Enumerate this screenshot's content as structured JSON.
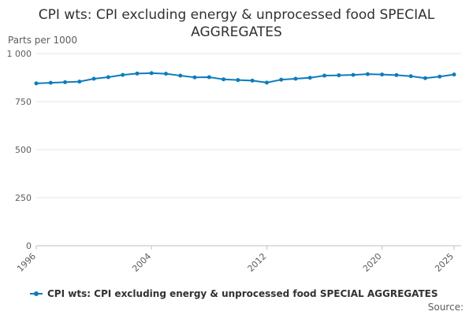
{
  "chart_data": {
    "type": "line",
    "title": "CPI wts: CPI excluding energy & unprocessed food SPECIAL AGGREGATES",
    "ylabel": "Parts per 1000",
    "xlabel": "",
    "ylim": [
      0,
      1000
    ],
    "yticks": [
      0,
      250,
      500,
      750,
      1000
    ],
    "ytick_labels": [
      "0",
      "250",
      "500",
      "750",
      "1 000"
    ],
    "xlim": [
      1996,
      2025
    ],
    "xticks": [
      1996,
      2004,
      2012,
      2020,
      2025
    ],
    "xtick_labels": [
      "1996",
      "2004",
      "2012",
      "2020",
      "2025"
    ],
    "grid": true,
    "series": [
      {
        "name": "CPI wts: CPI excluding energy & unprocessed food SPECIAL AGGREGATES",
        "color": "#0d7cba",
        "x": [
          1996,
          1997,
          1998,
          1999,
          2000,
          2001,
          2002,
          2003,
          2004,
          2005,
          2006,
          2007,
          2008,
          2009,
          2010,
          2011,
          2012,
          2013,
          2014,
          2015,
          2016,
          2017,
          2018,
          2019,
          2020,
          2021,
          2022,
          2023,
          2024,
          2025
        ],
        "values": [
          845,
          848,
          851,
          854,
          869,
          877,
          889,
          896,
          898,
          895,
          885,
          876,
          877,
          866,
          862,
          859,
          849,
          864,
          869,
          874,
          885,
          887,
          889,
          893,
          891,
          888,
          882,
          872,
          880,
          891
        ]
      }
    ],
    "legend_position": "bottom"
  },
  "footer": {
    "source_label": "Source:"
  }
}
